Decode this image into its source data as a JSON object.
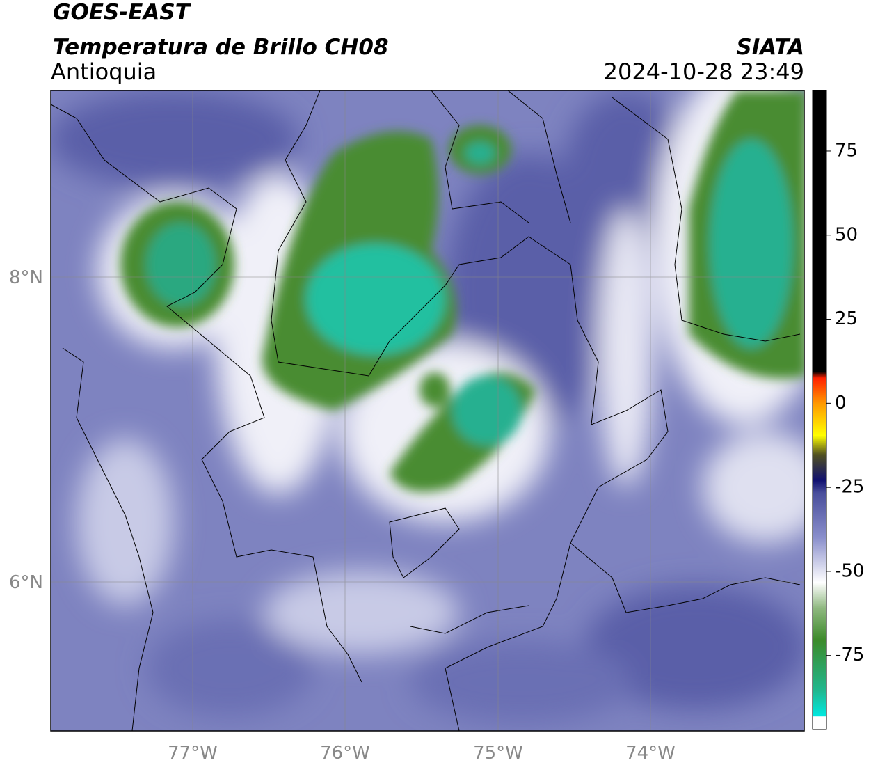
{
  "header": {
    "title": "GOES-EAST",
    "subtitle": "Temperatura de Brillo CH08",
    "region": "Antioquia",
    "source": "SIATA",
    "datetime": "2024-10-28 23:49"
  },
  "map": {
    "lat_labels": [
      "8°N",
      "6°N"
    ],
    "lon_labels": [
      "77°W",
      "76°W",
      "75°W",
      "74°W"
    ]
  },
  "colorbar": {
    "lim": [
      -97,
      93
    ],
    "ticks": [
      75,
      50,
      25,
      0,
      -25,
      -50,
      -75
    ]
  }
}
